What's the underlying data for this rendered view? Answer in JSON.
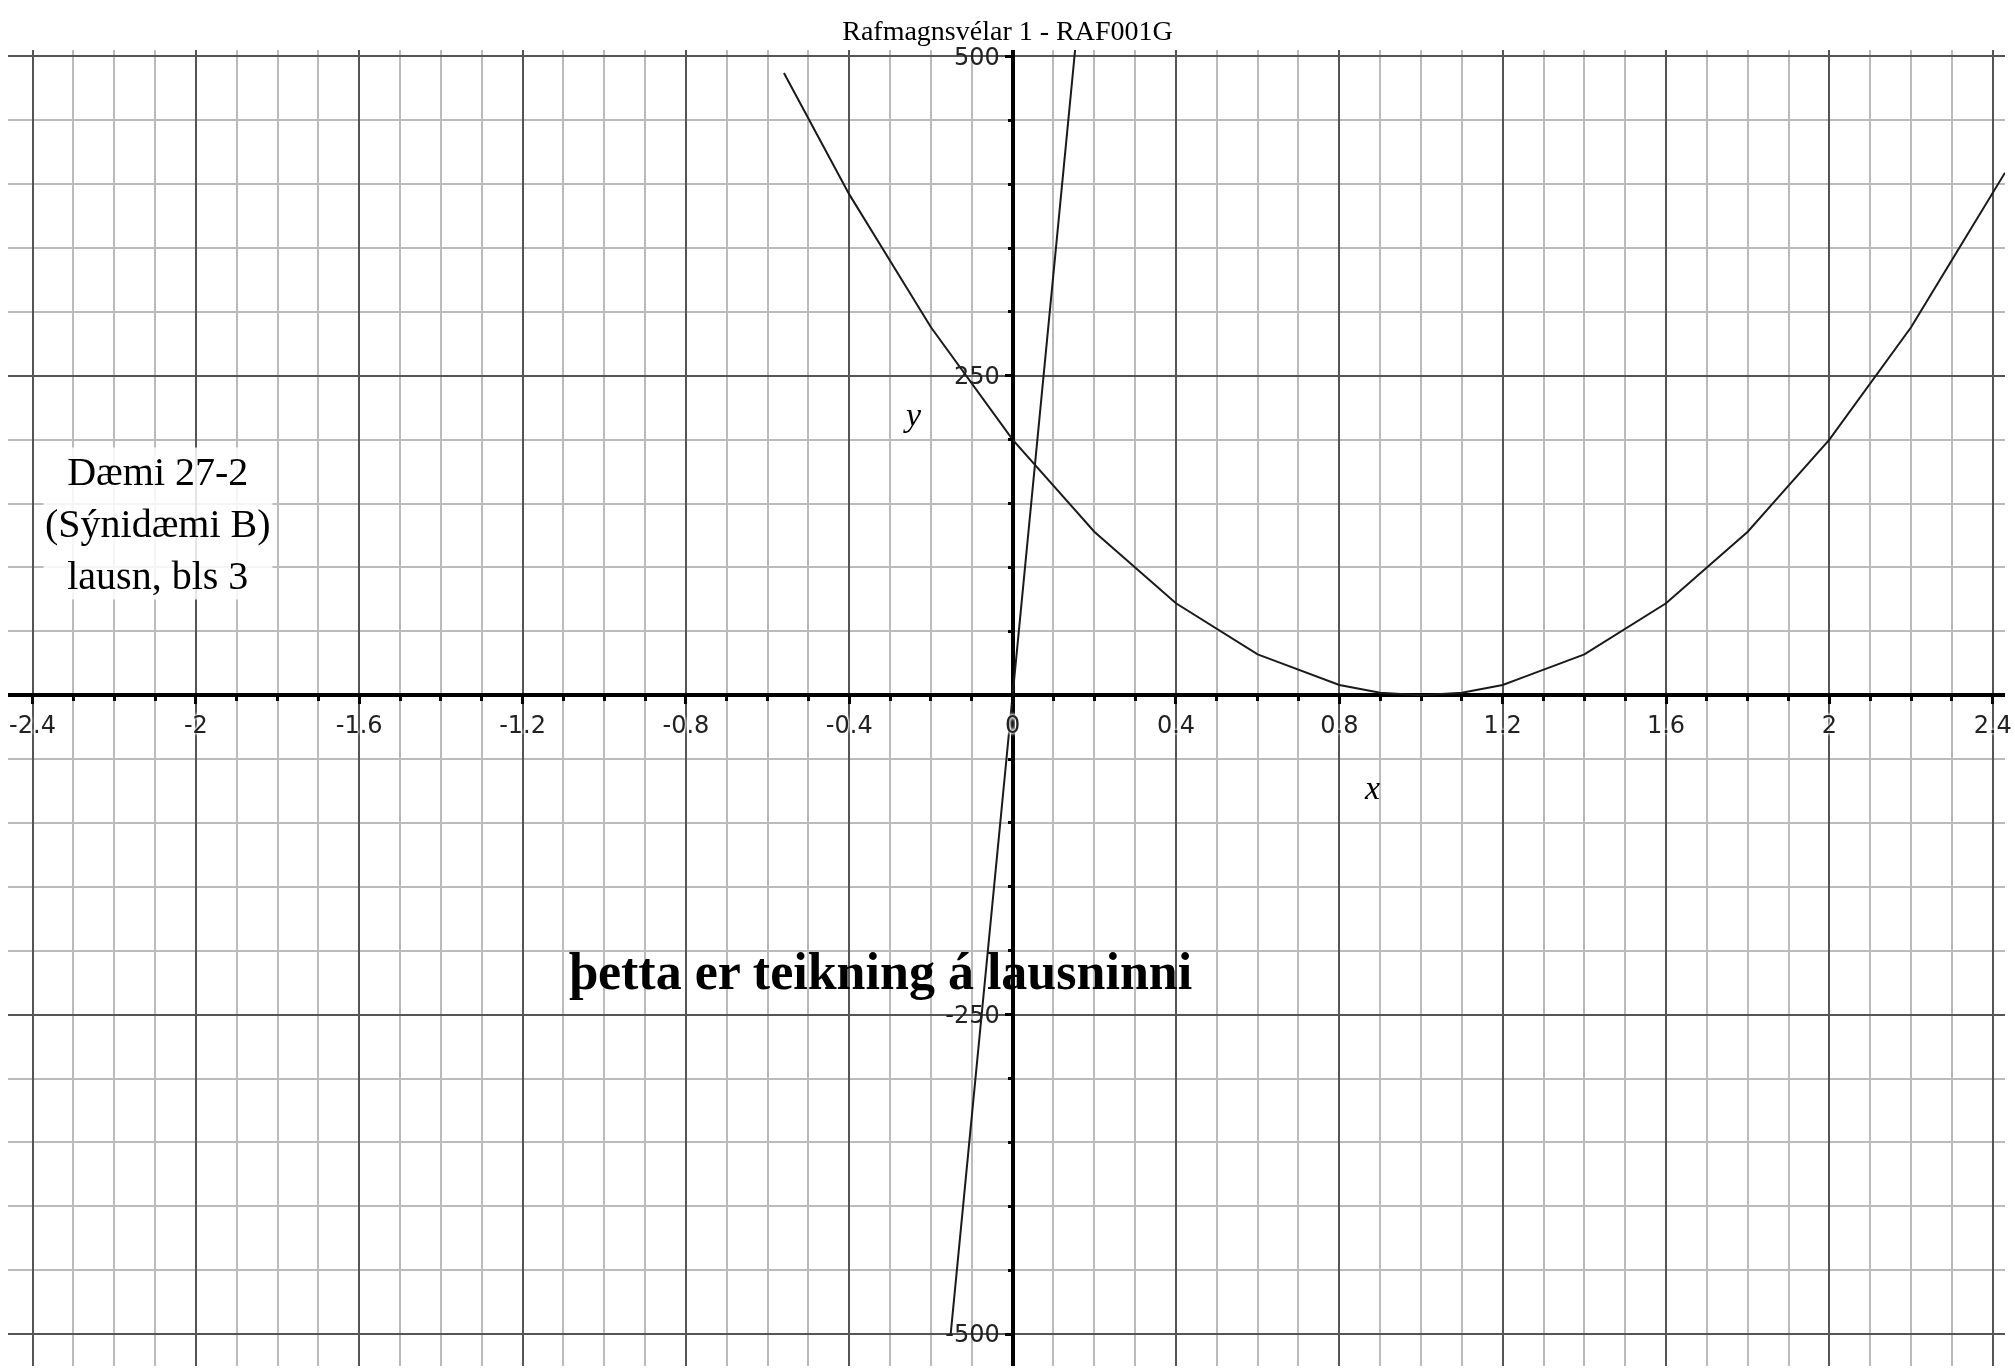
{
  "chart_data": {
    "type": "line",
    "title": "Rafmagnsvélar 1 - RAF001G",
    "xlabel": "x",
    "ylabel": "y",
    "annotations": [
      "Dæmi 27-2\n(Sýnidæmi B)\nlausn, bls 3",
      "þetta er teikning á lausninni"
    ],
    "series": [
      {
        "color": "#1a1a1a",
        "x": [
          -0.56,
          -0.4,
          -0.2,
          0,
          0.2,
          0.4,
          0.6,
          0.8,
          0.9,
          1.0,
          1.1,
          1.2,
          1.4,
          1.6,
          1.8,
          2.0,
          2.2,
          2.43
        ],
        "values": [
          487,
          392,
          288,
          200,
          128,
          72,
          32,
          8,
          2,
          0,
          2,
          8,
          32,
          72,
          128,
          200,
          288,
          409
        ]
      },
      {
        "color": "#1a1a1a",
        "x": [
          -0.152,
          0,
          0.153
        ],
        "values": [
          -501,
          0,
          505
        ]
      }
    ],
    "xlim": [
      -2.46,
      2.43
    ],
    "ylim": [
      -525,
      505
    ],
    "xticks": [
      -2.4,
      -2,
      -1.6,
      -1.2,
      -0.8,
      -0.4,
      0,
      0.4,
      0.8,
      1.2,
      1.6,
      2,
      2.4
    ],
    "yticks": [
      -500,
      -250,
      250,
      500
    ],
    "grid": true,
    "marker": "none",
    "line_style": "solid"
  }
}
